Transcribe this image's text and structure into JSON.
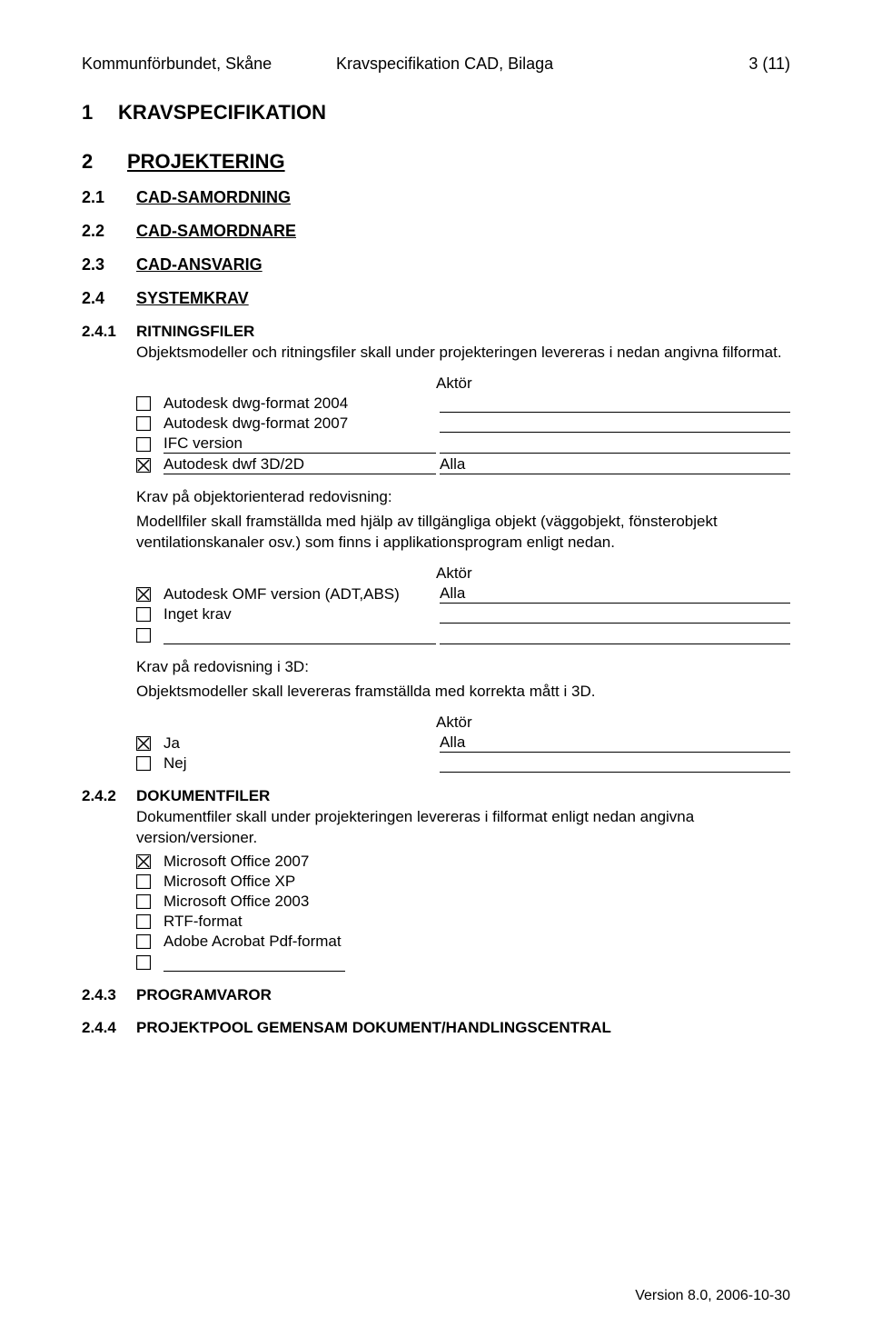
{
  "header": {
    "left": "Kommunförbundet, Skåne",
    "mid": "Kravspecifikation CAD, Bilaga",
    "right": "3 (11)"
  },
  "h1": {
    "num": "1",
    "title": "KRAVSPECIFIKATION"
  },
  "h2": {
    "num": "2",
    "title": "PROJEKTERING"
  },
  "s21": {
    "num": "2.1",
    "title": "CAD-SAMORDNING"
  },
  "s22": {
    "num": "2.2",
    "title": "CAD-SAMORDNARE"
  },
  "s23": {
    "num": "2.3",
    "title": "CAD-ANSVARIG"
  },
  "s24": {
    "num": "2.4",
    "title": "SYSTEMKRAV"
  },
  "s241": {
    "num": "2.4.1",
    "title": "RITNINGSFILER",
    "para": "Objektsmodeller och ritningsfiler skall under projekteringen levereras i nedan angivna filformat.",
    "aktor": "Aktör",
    "rows": [
      {
        "checked": false,
        "label": "Autodesk dwg-format 2004",
        "label_underlined": false,
        "right": ""
      },
      {
        "checked": false,
        "label": "Autodesk dwg-format 2007",
        "label_underlined": false,
        "right": ""
      },
      {
        "checked": false,
        "label": "IFC version",
        "label_underlined": true,
        "right": ""
      },
      {
        "checked": true,
        "label": "Autodesk dwf 3D/2D",
        "label_underlined": true,
        "right": "Alla"
      }
    ],
    "krav_title": "Krav på objektorienterad redovisning:",
    "krav_body": "Modellfiler skall framställda med hjälp av tillgängliga objekt (väggobjekt, fönsterobjekt ventilationskanaler osv.) som finns i applikationsprogram enligt nedan.",
    "aktor2": "Aktör",
    "rows2": [
      {
        "checked": true,
        "label": "Autodesk OMF version (ADT,ABS)",
        "label_underlined": false,
        "right": "Alla"
      },
      {
        "checked": false,
        "label": "Inget krav",
        "label_underlined": false,
        "right": ""
      },
      {
        "checked": false,
        "label": "",
        "label_underlined": true,
        "right": ""
      }
    ],
    "krav3_title": "Krav på redovisning i 3D:",
    "krav3_body": "Objektsmodeller skall levereras framställda med korrekta mått i 3D.",
    "aktor3": "Aktör",
    "rows3": [
      {
        "checked": true,
        "label": "Ja",
        "label_underlined": false,
        "right": "Alla"
      },
      {
        "checked": false,
        "label": "Nej",
        "label_underlined": false,
        "right": ""
      }
    ]
  },
  "s242": {
    "num": "2.4.2",
    "title": "DOKUMENTFILER",
    "para": "Dokumentfiler skall under projekteringen levereras i filformat enligt nedan angivna version/versioner.",
    "rows": [
      {
        "checked": true,
        "label": "Microsoft Office 2007"
      },
      {
        "checked": false,
        "label": "Microsoft Office XP"
      },
      {
        "checked": false,
        "label": "Microsoft Office 2003"
      },
      {
        "checked": false,
        "label": "RTF-format"
      },
      {
        "checked": false,
        "label": "Adobe Acrobat Pdf-format"
      },
      {
        "checked": false,
        "label": ""
      }
    ]
  },
  "s243": {
    "num": "2.4.3",
    "title": "PROGRAMVAROR"
  },
  "s244": {
    "num": "2.4.4",
    "title": "PROJEKTPOOL GEMENSAM DOKUMENT/HANDLINGSCENTRAL"
  },
  "footer": "Version 8.0, 2006-10-30"
}
